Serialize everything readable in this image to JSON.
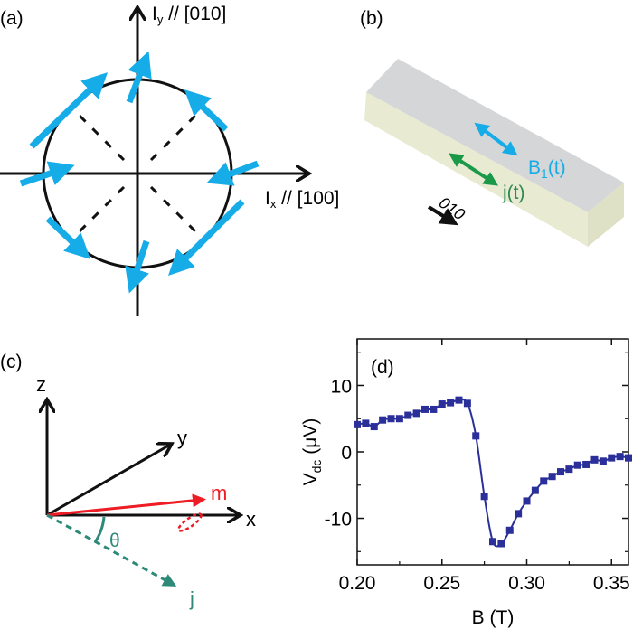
{
  "colors": {
    "cyan": "#16ace8",
    "green": "#1a9a48",
    "teal": "#2e8a78",
    "red": "#ee1c25",
    "navy": "#2b2f9a",
    "box_top": "#d4d6d8",
    "box_side": "#e8ead2"
  },
  "panel_a": {
    "label": "(a)",
    "y_axis_label": "I",
    "y_sub": "y",
    "y_dir": " // [010]",
    "x_axis_label": "I",
    "x_sub": "x",
    "x_dir": " // [100]"
  },
  "panel_b": {
    "label": "(b)",
    "b1_label": "B",
    "b1_sub": "1",
    "b1_suffix": "(t)",
    "j_label": "j(t)",
    "direction_label": "010"
  },
  "panel_c": {
    "label": "(c)",
    "z": "z",
    "y": "y",
    "x": "x",
    "m": "m",
    "theta": "θ",
    "j": "j"
  },
  "chart_data": {
    "type": "line",
    "panel_label": "(d)",
    "xlabel": "B (T)",
    "ylabel": "V",
    "ylabel_sub": "dc",
    "ylabel_unit": " (μV)",
    "xlim": [
      0.2,
      0.36
    ],
    "ylim": [
      -17,
      17
    ],
    "xticks": [
      "0.20",
      "0.25",
      "0.30",
      "0.35"
    ],
    "yticks": [
      "10",
      "0",
      "-10"
    ],
    "grid": false,
    "marker": "square",
    "x": [
      0.2,
      0.205,
      0.21,
      0.215,
      0.22,
      0.225,
      0.23,
      0.235,
      0.24,
      0.245,
      0.25,
      0.255,
      0.26,
      0.265,
      0.27,
      0.275,
      0.28,
      0.285,
      0.29,
      0.295,
      0.3,
      0.305,
      0.31,
      0.315,
      0.32,
      0.325,
      0.33,
      0.335,
      0.34,
      0.345,
      0.35,
      0.355,
      0.36
    ],
    "y": [
      4.1,
      4.3,
      3.8,
      4.8,
      5.0,
      5.0,
      5.5,
      5.8,
      6.4,
      6.4,
      7.2,
      7.4,
      7.8,
      7.3,
      2.4,
      -6.7,
      -13.5,
      -13.8,
      -11.8,
      -9.3,
      -7.4,
      -5.8,
      -4.4,
      -3.7,
      -3.0,
      -2.6,
      -2.0,
      -1.9,
      -1.2,
      -1.4,
      -0.9,
      -0.7,
      -0.9
    ]
  }
}
